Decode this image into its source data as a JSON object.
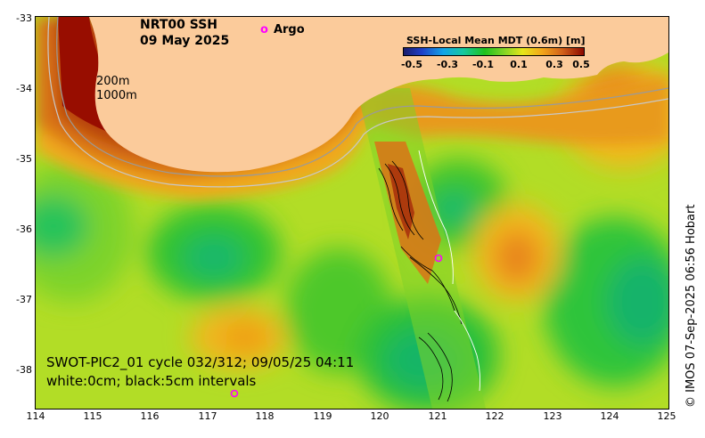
{
  "title": {
    "product": "NRT00 SSH",
    "date": "09 May 2025"
  },
  "legend": {
    "symbol": "o",
    "label": "Argo"
  },
  "colorbar": {
    "title": "SSH-Local Mean MDT (0.6m) [m]",
    "tick_labels": [
      "-0.5",
      "-0.3",
      "-0.1",
      "0.1",
      "0.3",
      "0.5"
    ],
    "min": -0.5,
    "max": 0.5,
    "colors": [
      "#1a1d6b",
      "#1f3fc8",
      "#12a4e8",
      "#14c8a0",
      "#1dc21d",
      "#7bd326",
      "#e6e61a",
      "#f2a51a",
      "#d2611a",
      "#8c0a00"
    ]
  },
  "isobaths": {
    "shallow": "200m",
    "deep": "1000m"
  },
  "axes": {
    "lat_ticks": [
      "-33",
      "-34",
      "-35",
      "-36",
      "-37",
      "-38"
    ],
    "lon_ticks": [
      "114",
      "115",
      "116",
      "117",
      "118",
      "119",
      "120",
      "121",
      "122",
      "123",
      "124",
      "125"
    ],
    "lon_range": [
      114,
      125
    ],
    "lat_range": [
      -38.6,
      -33
    ]
  },
  "annotation": {
    "track_info": "SWOT-PIC2_01 cycle 032/312; 09/05/25 04:11",
    "contour_info": "white:0cm; black:5cm intervals"
  },
  "credit": "© IMOS 07-Sep-2025 06:56 Hobart",
  "colors": {
    "land": "#fbcb9b",
    "argo": "#ff00ff"
  }
}
